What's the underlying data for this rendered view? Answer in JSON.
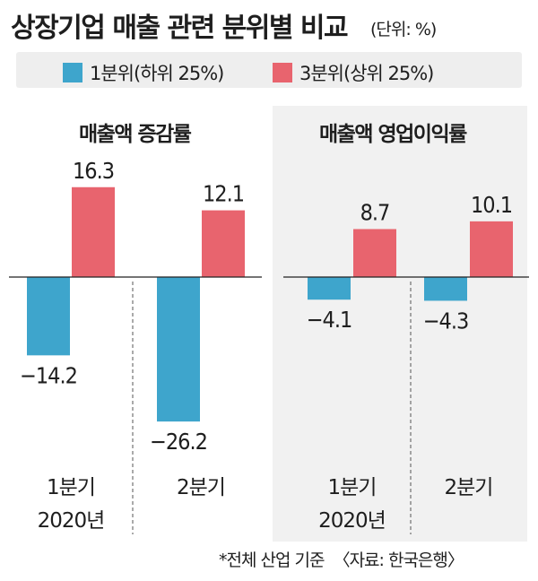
{
  "header": {
    "title": "상장기업 매출 관련 분위별 비교",
    "unit": "(단위: %)"
  },
  "legend": [
    {
      "label": "1분위(하위 25%)",
      "color": "#3ea5cc"
    },
    {
      "label": "3분위(상위 25%)",
      "color": "#e8646e"
    }
  ],
  "footer": {
    "note": "*전체 산업 기준",
    "source": "〈자료: 한국은행〉"
  },
  "chart_data": [
    {
      "type": "bar",
      "title": "매출액 증감률",
      "categories": [
        "1분기 2020년",
        "2분기"
      ],
      "category_lines": [
        [
          "1분기",
          "2020년"
        ],
        [
          "2분기"
        ]
      ],
      "series": [
        {
          "name": "1분위(하위 25%)",
          "values": [
            -14.2,
            -26.2
          ],
          "labels": [
            "−14.2",
            "−26.2"
          ]
        },
        {
          "name": "3분위(상위 25%)",
          "values": [
            16.3,
            12.1
          ],
          "labels": [
            "16.3",
            "12.1"
          ]
        }
      ]
    },
    {
      "type": "bar",
      "title": "매출액 영업이익률",
      "categories": [
        "1분기 2020년",
        "2분기"
      ],
      "category_lines": [
        [
          "1분기",
          "2020년"
        ],
        [
          "2분기"
        ]
      ],
      "series": [
        {
          "name": "1분위(하위 25%)",
          "values": [
            -4.1,
            -4.3
          ],
          "labels": [
            "−4.1",
            "−4.3"
          ]
        },
        {
          "name": "3분위(상위 25%)",
          "values": [
            8.7,
            10.1
          ],
          "labels": [
            "8.7",
            "10.1"
          ]
        }
      ]
    }
  ]
}
